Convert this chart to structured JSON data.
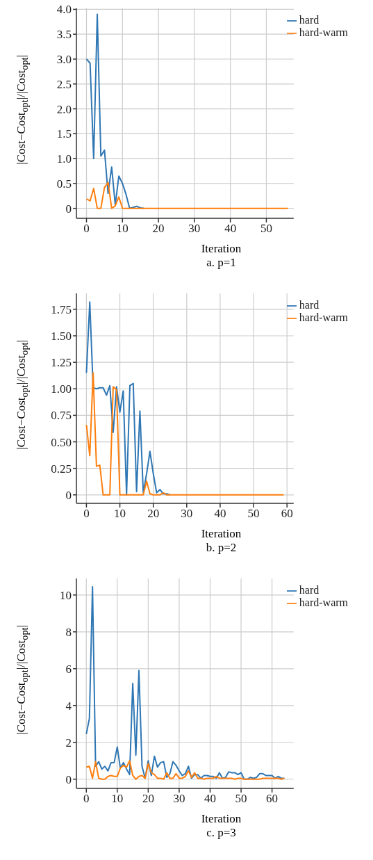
{
  "chart_data": [
    {
      "type": "line",
      "xlabel": "Iteration",
      "ylabel": "|Cost−Cost$_{opt}$|/|Cost$_{opt}$|",
      "annotations": [
        "a. p=1"
      ],
      "legend": "top right",
      "grid": true,
      "marker": "none",
      "xlim": [
        -2.8,
        57.6
      ],
      "xticks": [
        0,
        10,
        20,
        30,
        40,
        50
      ],
      "ylim": [
        -0.2,
        4.02
      ],
      "yticks": [
        0,
        {
          "value": 0.5,
          "label": "0.5"
        },
        {
          "value": 1,
          "label": "1.0"
        },
        {
          "value": 1.5,
          "label": "1.5"
        },
        {
          "value": 2,
          "label": "2.0"
        },
        {
          "value": 2.5,
          "label": "2.5"
        },
        {
          "value": 3,
          "label": "3.0"
        },
        {
          "value": 3.5,
          "label": "3.5"
        },
        {
          "value": 4,
          "label": "4.0"
        }
      ],
      "x": [
        0,
        1,
        2,
        3,
        4,
        5,
        6,
        7,
        8,
        9,
        10,
        11,
        12,
        13,
        14,
        15,
        16,
        17,
        18,
        19,
        20,
        21,
        22,
        23,
        24,
        25,
        26,
        27,
        28,
        29,
        30,
        31,
        32,
        33,
        34,
        35,
        36,
        37,
        38,
        39,
        40,
        41,
        42,
        43,
        44,
        45,
        46,
        47,
        48,
        49,
        50,
        51,
        52,
        53,
        54,
        55,
        56
      ],
      "series": [
        {
          "name": "hard",
          "color": "#2f77b4",
          "values": [
            3.0,
            2.92,
            1.0,
            3.9,
            1.05,
            1.17,
            0.3,
            0.83,
            0.07,
            0.65,
            0.5,
            0.28,
            0,
            0.02,
            0.04,
            0.01,
            0,
            null,
            null,
            null,
            null,
            null,
            null,
            null,
            null,
            null,
            null,
            null,
            null,
            null,
            null,
            null,
            null,
            null,
            null,
            null,
            null,
            null,
            null,
            null,
            null,
            null,
            null,
            null,
            null,
            null,
            null,
            null,
            null,
            null,
            null,
            null,
            null,
            null,
            null,
            null,
            null
          ]
        },
        {
          "name": "hard-warm",
          "color": "#ff7f0e",
          "values": [
            0.19,
            0.15,
            0.4,
            0,
            0,
            0.42,
            0.52,
            0,
            0.05,
            0.23,
            0,
            0,
            0,
            0,
            0,
            0,
            0,
            0,
            0,
            0,
            0,
            0,
            0,
            0,
            0,
            0,
            0,
            0,
            0,
            0,
            0,
            0,
            0,
            0,
            0,
            0,
            0,
            0,
            0,
            0,
            0,
            0,
            0,
            0,
            0,
            0,
            0,
            0,
            0,
            0,
            0,
            0,
            0,
            0,
            0,
            0,
            0
          ]
        }
      ]
    },
    {
      "type": "line",
      "xlabel": "Iteration",
      "ylabel": "|Cost−Cost$_{opt}$|/|Cost$_{opt}$|",
      "annotations": [
        "b. p=2"
      ],
      "legend": "top right",
      "grid": true,
      "marker": "none",
      "xlim": [
        -3,
        62
      ],
      "xticks": [
        0,
        10,
        20,
        30,
        40,
        50,
        60
      ],
      "ylim": [
        -0.08,
        1.9
      ],
      "yticks": [
        0,
        {
          "value": 0.25,
          "label": "0.25"
        },
        {
          "value": 0.5,
          "label": "0.50"
        },
        {
          "value": 0.75,
          "label": "0.75"
        },
        {
          "value": 1,
          "label": "1.00"
        },
        {
          "value": 1.25,
          "label": "1.25"
        },
        {
          "value": 1.5,
          "label": "1.50"
        },
        {
          "value": 1.75,
          "label": "1.75"
        }
      ],
      "x": [
        0,
        1,
        2,
        3,
        4,
        5,
        6,
        7,
        8,
        9,
        10,
        11,
        12,
        13,
        14,
        15,
        16,
        17,
        18,
        19,
        20,
        21,
        22,
        23,
        24,
        25,
        26,
        27,
        28,
        29,
        30,
        31,
        32,
        33,
        34,
        35,
        36,
        37,
        38,
        39,
        40,
        41,
        42,
        43,
        44,
        45,
        46,
        47,
        48,
        49,
        50,
        51,
        52,
        53,
        54,
        55,
        56,
        57,
        58,
        59
      ],
      "series": [
        {
          "name": "hard",
          "color": "#2f77b4",
          "values": [
            1.15,
            1.82,
            1.01,
            1.0,
            1.01,
            1.01,
            0.94,
            1.03,
            0.59,
            1.02,
            0.78,
            0.98,
            0,
            1.03,
            1.05,
            0.03,
            0.79,
            0.02,
            0.2,
            0.41,
            0.2,
            0.02,
            0.05,
            0.01,
            0.01,
            0,
            null,
            null,
            null,
            null,
            null,
            null,
            null,
            null,
            null,
            null,
            null,
            null,
            null,
            null,
            null,
            null,
            null,
            null,
            null,
            null,
            null,
            null,
            null,
            null,
            null,
            null,
            null,
            null,
            null,
            null,
            null,
            null,
            null,
            null
          ]
        },
        {
          "name": "hard-warm",
          "color": "#ff7f0e",
          "values": [
            0.66,
            0.37,
            1.15,
            0.27,
            0.28,
            0,
            0,
            0,
            1.02,
            0.99,
            0,
            0,
            0,
            0,
            0,
            0,
            0,
            0,
            0.13,
            0.01,
            0,
            0,
            0,
            0.02,
            0,
            0,
            0,
            0,
            0,
            0,
            0,
            0,
            0,
            0,
            0,
            0,
            0,
            0,
            0,
            0,
            0,
            0,
            0,
            0,
            0,
            0,
            0,
            0,
            0,
            0,
            0,
            0,
            0,
            0,
            0,
            0,
            0,
            0,
            0,
            0
          ]
        }
      ]
    },
    {
      "type": "line",
      "xlabel": "Iteration",
      "ylabel": "|Cost−Cost$_{opt}$|/|Cost$_{opt}$|",
      "annotations": [
        "c. p=3"
      ],
      "legend": "top right",
      "grid": true,
      "marker": "none",
      "xlim": [
        -3.2,
        67
      ],
      "xticks": [
        0,
        10,
        20,
        30,
        40,
        50,
        60
      ],
      "ylim": [
        -0.5,
        10.9
      ],
      "yticks": [
        0,
        2,
        4,
        6,
        8,
        10
      ],
      "x": [
        0,
        1,
        2,
        3,
        4,
        5,
        6,
        7,
        8,
        9,
        10,
        11,
        12,
        13,
        14,
        15,
        16,
        17,
        18,
        19,
        20,
        21,
        22,
        23,
        24,
        25,
        26,
        27,
        28,
        29,
        30,
        31,
        32,
        33,
        34,
        35,
        36,
        37,
        38,
        39,
        40,
        41,
        42,
        43,
        44,
        45,
        46,
        47,
        48,
        49,
        50,
        51,
        52,
        53,
        54,
        55,
        56,
        57,
        58,
        59,
        60,
        61,
        62,
        63,
        64
      ],
      "series": [
        {
          "name": "hard",
          "color": "#2f77b4",
          "values": [
            2.45,
            3.3,
            10.45,
            0.7,
            0.95,
            0.55,
            0.7,
            0.45,
            0.9,
            0.9,
            1.75,
            0.6,
            0.9,
            0.55,
            0.25,
            5.2,
            1.3,
            5.9,
            0.7,
            0.05,
            1.0,
            0.2,
            1.25,
            0.65,
            0.9,
            0.95,
            0.1,
            0.3,
            0.95,
            0.75,
            0.45,
            0.2,
            0.3,
            0.7,
            0.05,
            0.25,
            0.25,
            0.05,
            0.2,
            0.2,
            0.15,
            0.15,
            0.05,
            0.35,
            0.05,
            0.1,
            0.4,
            0.35,
            0.35,
            0.25,
            0.35,
            0,
            0,
            0.1,
            0.05,
            0.1,
            0.3,
            0.3,
            0.2,
            0.2,
            0.2,
            0.05,
            0.15,
            0.05,
            0.05
          ]
        },
        {
          "name": "hard-warm",
          "color": "#ff7f0e",
          "values": [
            0.65,
            0.7,
            0.05,
            0.95,
            0.05,
            0,
            0,
            0.15,
            0.2,
            0.15,
            0.15,
            0.6,
            0.75,
            0.65,
            1.0,
            0.2,
            0,
            0.15,
            0.2,
            0.05,
            0.85,
            0.35,
            0.25,
            0.05,
            0.05,
            0,
            0.35,
            0.05,
            0.05,
            0.3,
            0.05,
            0.05,
            0.15,
            0.45,
            0.1,
            0.35,
            0.05,
            0.05,
            0,
            0.05,
            0.05,
            0.05,
            0.15,
            0.05,
            0.05,
            0.05,
            0.05,
            0.05,
            0,
            0.05,
            0.05,
            0,
            0,
            0,
            0,
            0,
            0,
            0.05,
            0.05,
            0.05,
            0.05,
            0.05,
            0.05,
            0,
            0.05
          ]
        }
      ]
    }
  ]
}
